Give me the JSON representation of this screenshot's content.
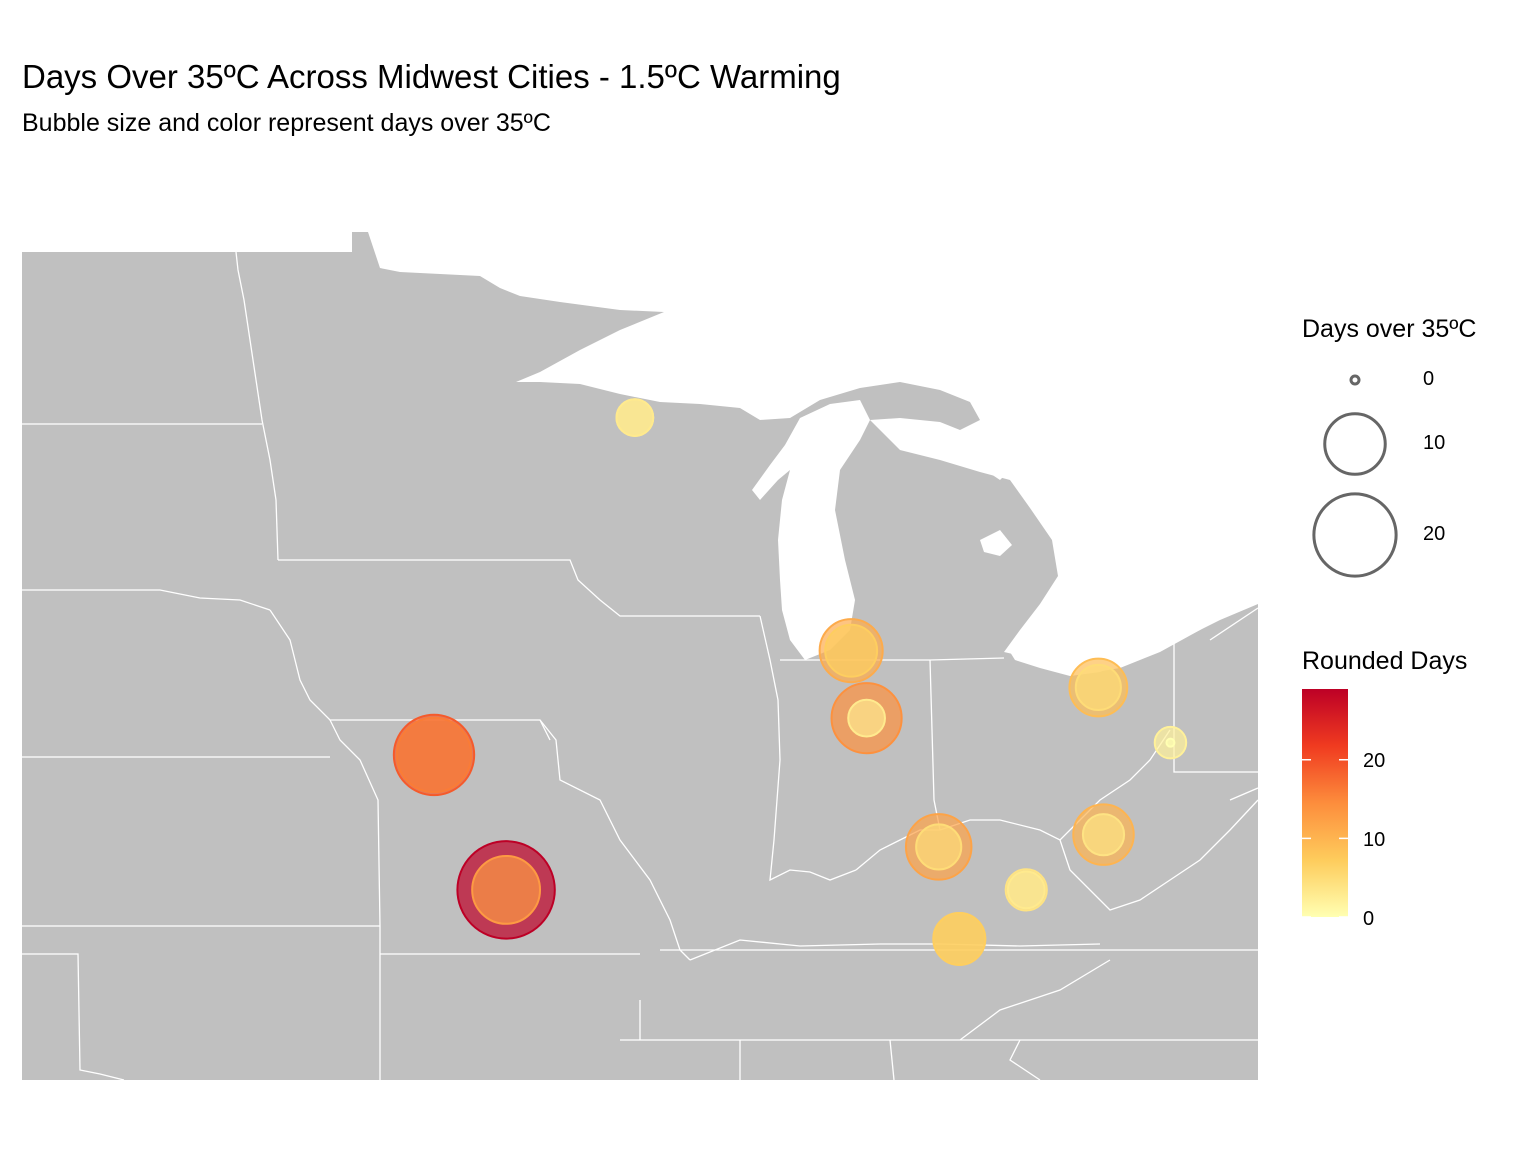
{
  "title": "Days Over 35ºC Across Midwest Cities - 1.5ºC Warming",
  "subtitle": "Bubble size and color represent days over 35ºC",
  "legend_size": {
    "title": "Days over 35ºC",
    "breaks": [
      {
        "value": 0,
        "label": "0"
      },
      {
        "value": 10,
        "label": "10"
      },
      {
        "value": 20,
        "label": "20"
      }
    ]
  },
  "legend_color": {
    "title": "Rounded Days",
    "range": [
      0,
      29
    ],
    "ticks": [
      {
        "value": 0,
        "label": "0"
      },
      {
        "value": 10,
        "label": "10"
      },
      {
        "value": 20,
        "label": "20"
      }
    ],
    "colors": [
      "#ffffb2",
      "#fecc5c",
      "#fd8d3c",
      "#f03b20",
      "#bd0026"
    ]
  },
  "map": {
    "land_color": "#c0c0c0",
    "border_color": "#ffffff",
    "water_color": "#ffffff",
    "lon_range": [
      -104.0,
      -80.0
    ],
    "lat_range": [
      36.0,
      49.5
    ]
  },
  "chart_data": {
    "type": "bubble-map",
    "x_field": "longitude",
    "y_field": "latitude",
    "size_field": "days_over_35C",
    "color_field": "rounded_days",
    "points": [
      {
        "lon": -92.1,
        "lat": 46.8,
        "days_outer": 3,
        "days_inner": 3
      },
      {
        "lon": -87.9,
        "lat": 43.0,
        "days_outer": 11,
        "days_inner": 7
      },
      {
        "lon": -87.6,
        "lat": 41.9,
        "days_outer": 14,
        "days_inner": 3
      },
      {
        "lon": -83.1,
        "lat": 42.4,
        "days_outer": 9,
        "days_inner": 5
      },
      {
        "lon": -81.7,
        "lat": 41.5,
        "days_outer": 2,
        "days_inner": 0
      },
      {
        "lon": -96.0,
        "lat": 41.3,
        "days_outer": 19,
        "days_inner": 16
      },
      {
        "lon": -94.6,
        "lat": 39.1,
        "days_outer": 29,
        "days_inner": 13
      },
      {
        "lon": -86.2,
        "lat": 39.8,
        "days_outer": 12,
        "days_inner": 5
      },
      {
        "lon": -83.0,
        "lat": 40.0,
        "days_outer": 10,
        "days_inner": 4
      },
      {
        "lon": -84.5,
        "lat": 39.1,
        "days_outer": 4,
        "days_inner": 3
      },
      {
        "lon": -85.8,
        "lat": 38.3,
        "days_outer": 7,
        "days_inner": 7
      }
    ]
  }
}
